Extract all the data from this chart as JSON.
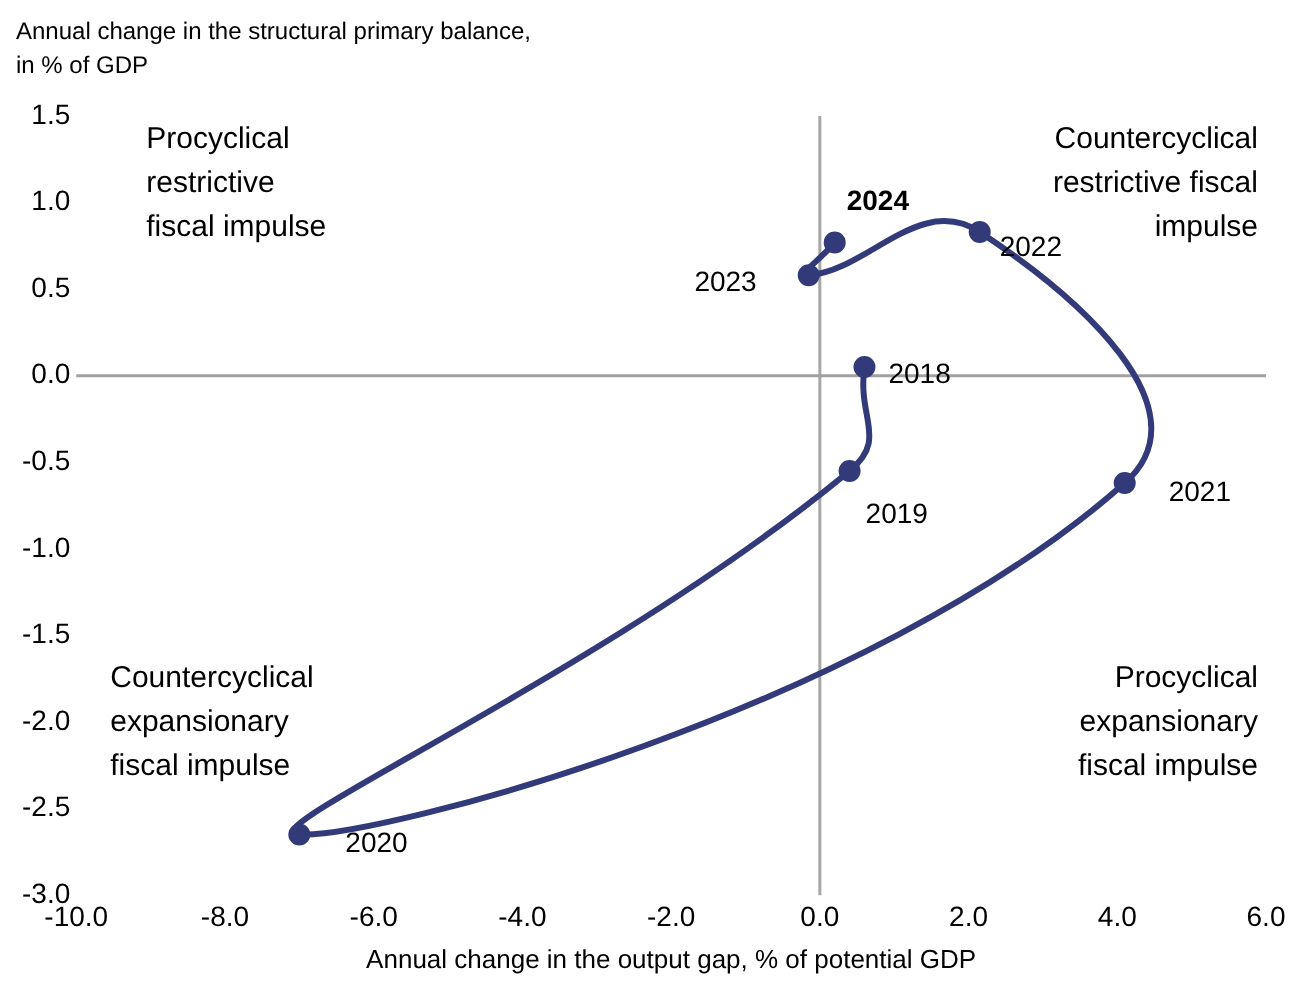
{
  "chart_data": {
    "type": "line",
    "xlabel": "Annual change in the output gap, % of potential GDP",
    "ylabel": "Annual change in the structural primary balance, in % of GDP",
    "series": [
      {
        "color": "#323a79",
        "x": [
          0.6,
          0.4,
          -7.0,
          4.1,
          2.15,
          -0.15,
          0.2
        ],
        "values": [
          0.05,
          -0.55,
          -2.65,
          -0.62,
          0.83,
          0.58,
          0.77
        ]
      }
    ],
    "marker": "circle",
    "line_style": "solid",
    "grid": false,
    "legend": false,
    "xlim": [
      -10,
      6
    ],
    "xticks": [
      {
        "value": -10,
        "label": "-10.0"
      },
      {
        "value": -8,
        "label": "-8.0"
      },
      {
        "value": -6,
        "label": "-6.0"
      },
      {
        "value": -4,
        "label": "-4.0"
      },
      {
        "value": -2,
        "label": "-2.0"
      },
      {
        "value": 0,
        "label": "0.0"
      },
      {
        "value": 2,
        "label": "2.0"
      },
      {
        "value": 4,
        "label": "4.0"
      },
      {
        "value": 6,
        "label": "6.0"
      }
    ],
    "ylim": [
      -3,
      1.5
    ],
    "yticks": [
      {
        "value": 1.5,
        "label": "1.5"
      },
      {
        "value": 1,
        "label": "1.0"
      },
      {
        "value": 0.5,
        "label": "0.5"
      },
      {
        "value": 0,
        "label": "0.0"
      },
      {
        "value": -0.5,
        "label": "-0.5"
      },
      {
        "value": -1,
        "label": "-1.0"
      },
      {
        "value": -1.5,
        "label": "-1.5"
      },
      {
        "value": -2,
        "label": "-2.0"
      },
      {
        "value": -2.5,
        "label": "-2.5"
      },
      {
        "value": -3,
        "label": "-3.0"
      }
    ],
    "ref_lines": [
      {
        "axis": "x",
        "value": 0,
        "color": "#a6a6a6"
      },
      {
        "axis": "y",
        "value": 0,
        "color": "#a0a0a0"
      }
    ],
    "annotations": [
      "Procyclical\nrestrictive\nfiscal impulse",
      "Countercyclical\nrestrictive fiscal\nimpulse",
      "Countercyclical\nexpansionary\nfiscal impulse",
      "Procyclical\nexpansionary\nfiscal impulse",
      {
        "text": "2018",
        "x": 0.6,
        "y": 0.05
      },
      {
        "text": "2019",
        "x": 0.4,
        "y": -0.55
      },
      {
        "text": "2020",
        "x": -7.0,
        "y": -2.65
      },
      {
        "text": "2021",
        "x": 4.1,
        "y": -0.62
      },
      {
        "text": "2022",
        "x": 2.15,
        "y": 0.83
      },
      {
        "text": "2023",
        "x": -0.15,
        "y": 0.58
      },
      {
        "text": "2024",
        "x": 0.2,
        "y": 0.77
      }
    ]
  }
}
